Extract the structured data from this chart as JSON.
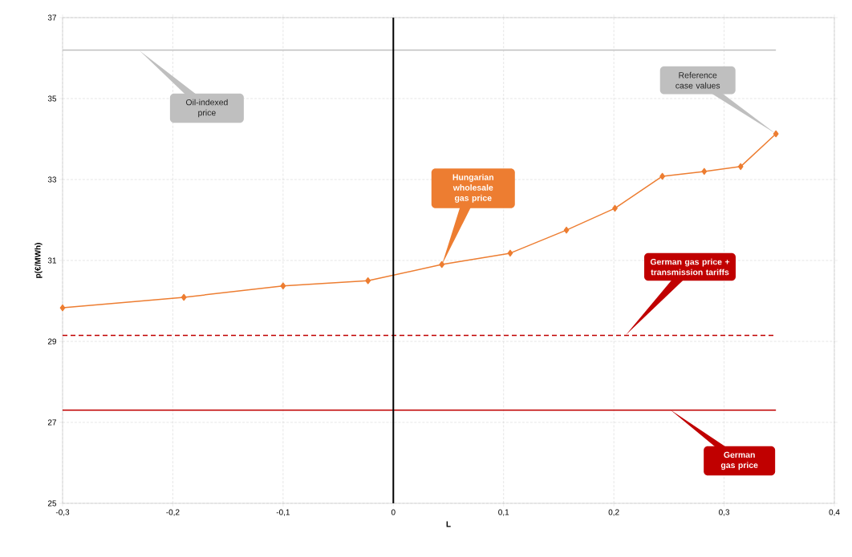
{
  "chart_data": {
    "type": "line",
    "xlabel": "L",
    "ylabel": "p(€/MWh)",
    "xlim": [
      -0.3,
      0.4
    ],
    "ylim": [
      25,
      37
    ],
    "xticks": [
      {
        "value": -0.3,
        "label": "-0,3"
      },
      {
        "value": -0.2,
        "label": "-0,2"
      },
      {
        "value": -0.1,
        "label": "-0,1"
      },
      0,
      {
        "value": 0.1,
        "label": "0,1"
      },
      {
        "value": 0.2,
        "label": "0,2"
      },
      {
        "value": 0.3,
        "label": "0,3"
      },
      {
        "value": 0.4,
        "label": "0,4"
      }
    ],
    "yticks": [
      25,
      27,
      29,
      31,
      33,
      35,
      37
    ],
    "grid": true,
    "series": [
      {
        "color": "#ed7d31",
        "marker": "diamond",
        "line_style": "solid",
        "x": [
          -0.3,
          -0.19,
          -0.1,
          -0.023,
          0.044,
          0.106,
          0.157,
          0.201,
          0.244,
          0.282,
          0.315,
          0.347
        ],
        "values": [
          29.83,
          30.09,
          30.37,
          30.5,
          30.9,
          31.18,
          31.75,
          32.29,
          33.08,
          33.2,
          33.32,
          34.13
        ]
      },
      {
        "color": "#bfbfbf",
        "marker": "none",
        "line_style": "solid",
        "x": [
          -0.3,
          0.347
        ],
        "values": [
          36.2,
          36.2
        ]
      },
      {
        "color": "#c00000",
        "marker": "none",
        "line_style": "dashed",
        "x": [
          -0.3,
          0.347
        ],
        "values": [
          29.15,
          29.15
        ]
      },
      {
        "color": "#c00000",
        "marker": "none",
        "line_style": "solid",
        "x": [
          -0.3,
          0.347
        ],
        "values": [
          27.3,
          27.3
        ]
      }
    ],
    "ref_lines": [
      {
        "axis": "x",
        "value": 0,
        "color": "#000000"
      }
    ],
    "annotations": [
      "Oil-indexed price",
      "Reference case values",
      "Hungarian wholesale gas price",
      "German gas price + transmission tariffs",
      "German gas price"
    ]
  }
}
